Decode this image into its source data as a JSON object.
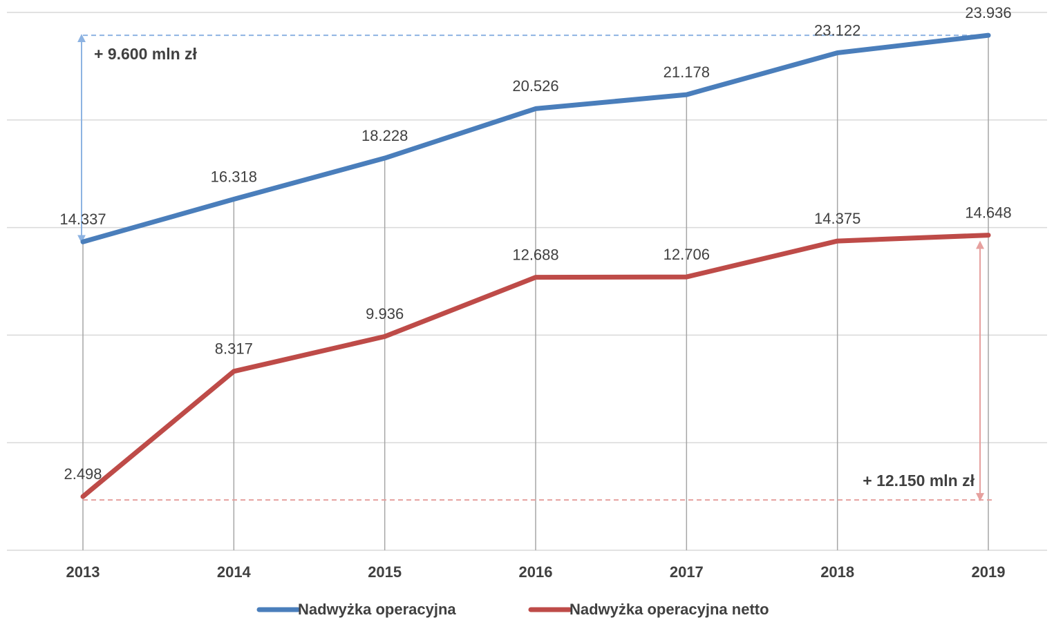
{
  "chart_data": {
    "type": "line",
    "categories": [
      "2013",
      "2014",
      "2015",
      "2016",
      "2017",
      "2018",
      "2019"
    ],
    "series": [
      {
        "name": "Nadwyżka operacyjna",
        "color": "#4a7ebb",
        "values": [
          14337,
          16318,
          18228,
          20526,
          21178,
          23122,
          23936
        ],
        "value_labels": [
          "14.337",
          "16.318",
          "18.228",
          "20.526",
          "21.178",
          "23.122",
          "23.936"
        ]
      },
      {
        "name": "Nadwyżka operacyjna netto",
        "color": "#be4b48",
        "values": [
          2498,
          8317,
          9936,
          12688,
          12706,
          14375,
          14648
        ],
        "value_labels": [
          "2.498",
          "8.317",
          "9.936",
          "12.688",
          "12.706",
          "14.375",
          "14.648"
        ]
      }
    ],
    "ylim": [
      0,
      25000
    ],
    "yticks": [
      0,
      5000,
      10000,
      15000,
      20000,
      25000
    ],
    "grid": true,
    "legend": "bottom",
    "annotations": [
      {
        "text": "+ 9.600 mln zł",
        "color": "#8db3e2"
      },
      {
        "text": "+ 12.150 mln zł",
        "color": "#e6a09e"
      }
    ]
  }
}
